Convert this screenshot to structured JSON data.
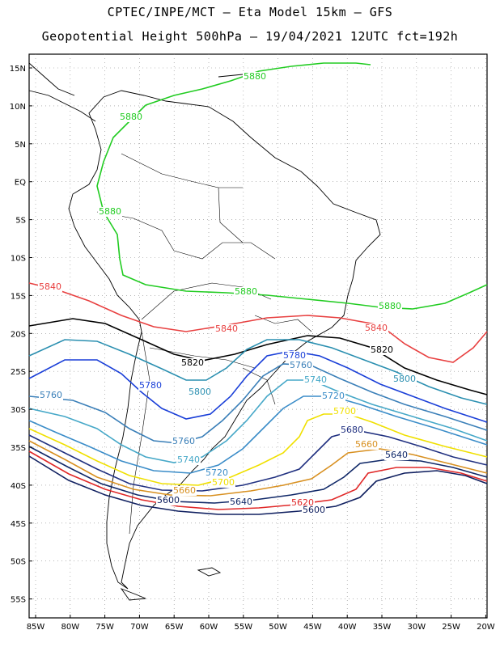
{
  "title_line1": "CPTEC/INPE/MCT –  Eta Model 15km – GFS",
  "title_line2": "Geopotential Height 500hPa – 19/04/2021 12UTC fct=192h",
  "lat_labels": [
    "15N",
    "10N",
    "5N",
    "EQ",
    "5S",
    "10S",
    "15S",
    "20S",
    "25S",
    "30S",
    "35S",
    "40S",
    "45S",
    "50S",
    "55S"
  ],
  "lon_labels": [
    "85W",
    "80W",
    "75W",
    "70W",
    "65W",
    "60W",
    "55W",
    "50W",
    "45W",
    "40W",
    "35W",
    "30W",
    "25W",
    "20W"
  ],
  "colors": {
    "5880": "#22cc22",
    "5840": "#e84040",
    "5820": "#000000",
    "5800": "#2a8fb0",
    "5780": "#1a3fd8",
    "5760": "#3a7fb8",
    "5740": "#46a8c8",
    "5720": "#3a8cc8",
    "5700": "#f0e000",
    "5680": "#203080",
    "5660": "#d89020",
    "5640": "#102868",
    "5620": "#e02828",
    "5600": "#102060"
  },
  "contour_labels": [
    {
      "text": "5880",
      "level": "5880"
    },
    {
      "text": "5880",
      "level": "5880"
    },
    {
      "text": "5880",
      "level": "5880"
    },
    {
      "text": "5880",
      "level": "5880"
    },
    {
      "text": "5880",
      "level": "5880"
    },
    {
      "text": "5840",
      "level": "5840"
    },
    {
      "text": "5840",
      "level": "5840"
    },
    {
      "text": "5840",
      "level": "5840"
    },
    {
      "text": "5820",
      "level": "5820"
    },
    {
      "text": "5820",
      "level": "5820"
    },
    {
      "text": "5780",
      "level": "5780"
    },
    {
      "text": "5780",
      "level": "5780"
    },
    {
      "text": "5760",
      "level": "5760"
    },
    {
      "text": "5760",
      "level": "5760"
    },
    {
      "text": "5760",
      "level": "5760"
    },
    {
      "text": "5800",
      "level": "5800"
    },
    {
      "text": "5800",
      "level": "5800"
    },
    {
      "text": "5740",
      "level": "5740"
    },
    {
      "text": "5740",
      "level": "5740"
    },
    {
      "text": "5720",
      "level": "5720"
    },
    {
      "text": "5720",
      "level": "5720"
    },
    {
      "text": "5700",
      "level": "5700"
    },
    {
      "text": "5700",
      "level": "5700"
    },
    {
      "text": "5680",
      "level": "5680"
    },
    {
      "text": "5660",
      "level": "5660"
    },
    {
      "text": "5660",
      "level": "5660"
    },
    {
      "text": "5640",
      "level": "5640"
    },
    {
      "text": "5640",
      "level": "5640"
    },
    {
      "text": "5620",
      "level": "5620"
    },
    {
      "text": "5600",
      "level": "5600"
    },
    {
      "text": "5600",
      "level": "5600"
    }
  ]
}
